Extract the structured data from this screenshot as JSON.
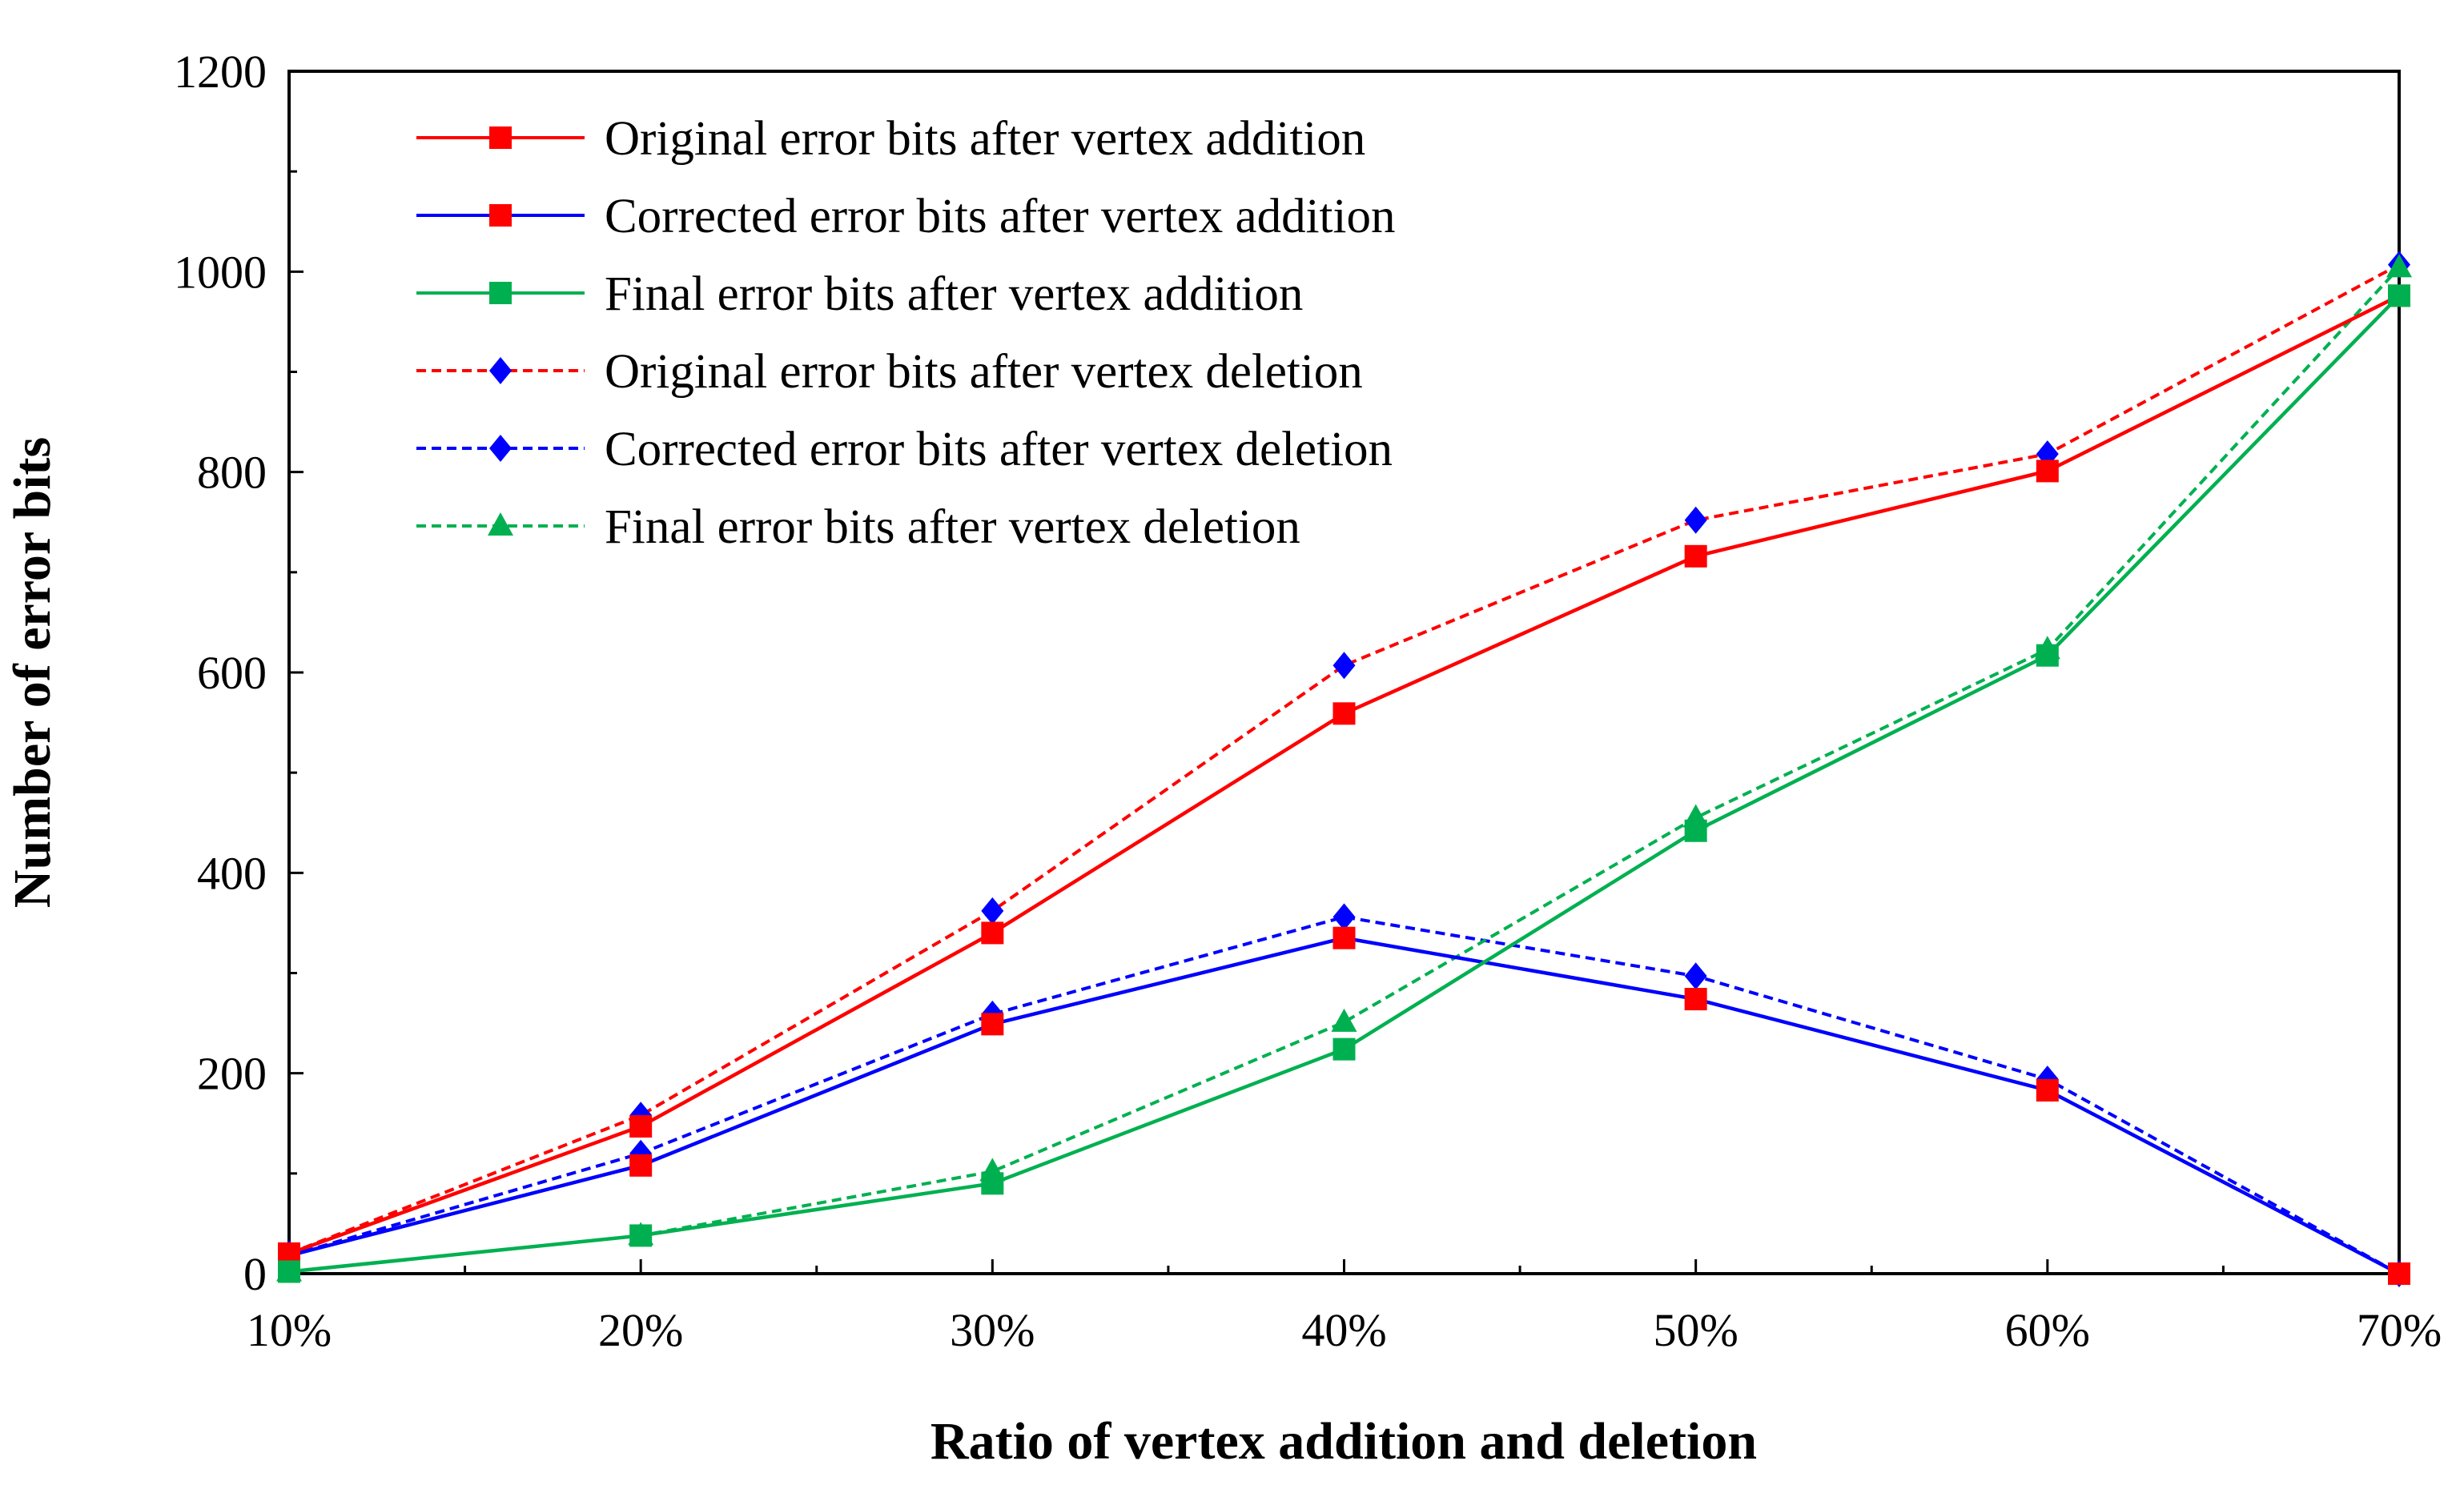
{
  "chart_data": {
    "type": "line",
    "title": "",
    "xlabel": "Ratio of vertex addition and deletion",
    "ylabel": "Number of error bits",
    "categories": [
      "10%",
      "20%",
      "30%",
      "40%",
      "50%",
      "60%",
      "70%"
    ],
    "ylim": [
      0,
      1200
    ],
    "yticks": [
      "0",
      "200",
      "400",
      "600",
      "800",
      "1000",
      "1200"
    ],
    "grid": false,
    "legend_position": "top-left",
    "series": [
      {
        "name": "Original error bits after vertex addition",
        "color": "#ff0000",
        "dash": "solid",
        "marker": "square",
        "marker_color": "#ff0000",
        "values": [
          20,
          147,
          340,
          559,
          716,
          801,
          976
        ]
      },
      {
        "name": "Corrected error bits after vertex addition",
        "color": "#0000ff",
        "dash": "solid",
        "marker": "square",
        "marker_color": "#ff0000",
        "values": [
          18,
          108,
          249,
          335,
          274,
          183,
          0
        ]
      },
      {
        "name": "Final error bits after vertex addition",
        "color": "#00b050",
        "dash": "solid",
        "marker": "square",
        "marker_color": "#00b050",
        "values": [
          2,
          38,
          90,
          224,
          442,
          617,
          976
        ]
      },
      {
        "name": "Original error bits after vertex deletion",
        "color": "#ff0000",
        "dash": "dashed",
        "marker": "diamond",
        "marker_color": "#0000ff",
        "values": [
          20,
          158,
          362,
          607,
          752,
          818,
          1007
        ]
      },
      {
        "name": "Corrected error bits after vertex deletion",
        "color": "#0000ff",
        "dash": "dashed",
        "marker": "diamond",
        "marker_color": "#0000ff",
        "values": [
          18,
          120,
          259,
          356,
          297,
          194,
          0
        ]
      },
      {
        "name": "Final error bits after vertex deletion",
        "color": "#00b050",
        "dash": "dashed",
        "marker": "triangle",
        "marker_color": "#00b050",
        "values": [
          2,
          38,
          102,
          251,
          455,
          623,
          1004
        ]
      }
    ]
  }
}
